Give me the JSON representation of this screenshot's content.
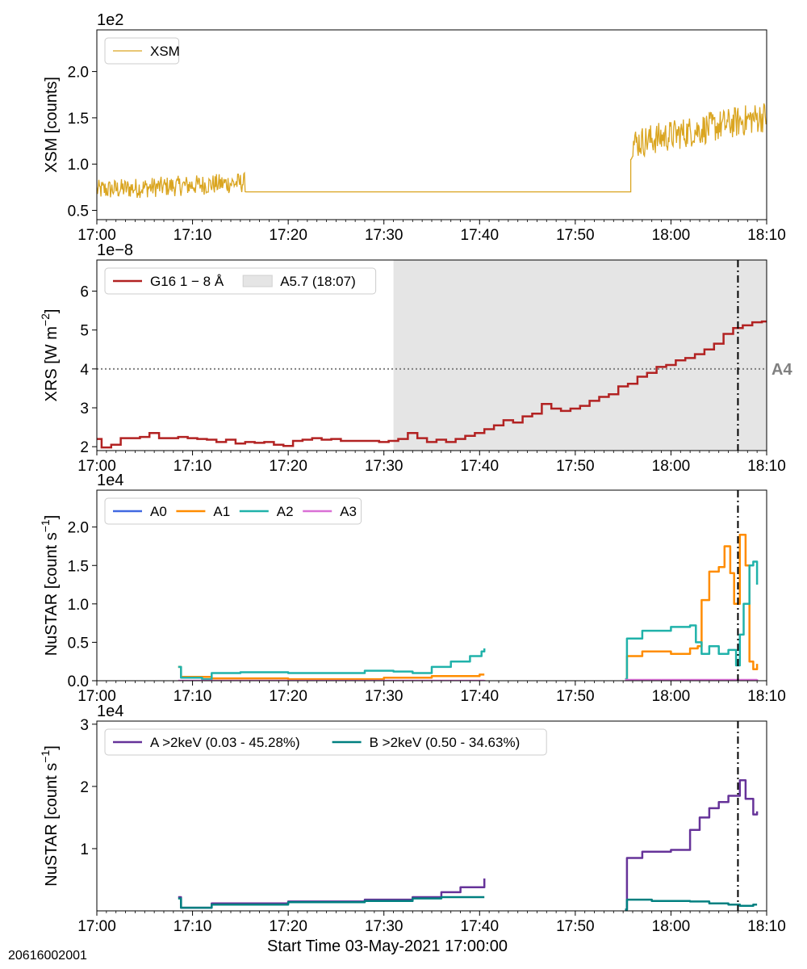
{
  "obs_id": "20616002001",
  "xlabel": "Start Time 03-May-2021 17:00:00",
  "x_ticks": [
    "17:00",
    "17:10",
    "17:20",
    "17:30",
    "17:40",
    "17:50",
    "18:00",
    "18:10"
  ],
  "colors": {
    "xsm": "#DAA520",
    "g16": "#B22222",
    "a0": "#4169E1",
    "a1": "#FF8C00",
    "a2": "#20B2AA",
    "a3": "#DA70D6",
    "a_gt2": "#663399",
    "b_gt2": "#008080",
    "shade": "#E5E5E5",
    "threshold": "#808080"
  },
  "chart_data": [
    {
      "type": "line",
      "panel": "xsm",
      "ylabel": "XSM [counts]",
      "multiplier": "1e2",
      "xlim_min": [
        0,
        70
      ],
      "ylim": [
        0.4,
        2.45
      ],
      "yticks": [
        "0.5",
        "1.0",
        "1.5",
        "2.0"
      ],
      "ytick_values": [
        0.5,
        1.0,
        1.5,
        2.0
      ],
      "legend": "upper-left",
      "series": [
        {
          "name": "XSM",
          "segments": [
            {
              "x0": 0,
              "x1": 15.5,
              "mean": 0.72,
              "mean_end": 0.8,
              "spread": 0.11
            },
            {
              "x0": 15.5,
              "x1": 55.8,
              "mean": 0.7,
              "mean_end": 0.7,
              "spread": 0
            },
            {
              "x0": 55.8,
              "x1": 70,
              "mean": 1.22,
              "mean_end": 1.52,
              "spread": 0.17
            }
          ]
        }
      ]
    },
    {
      "type": "line",
      "panel": "xrs",
      "ylabel": "XRS [W m",
      "ylabel_sup": "−2",
      "ylabel_close": "]",
      "multiplier": "1e−8",
      "xlim_min": [
        0,
        70
      ],
      "ylim": [
        1.9,
        6.8
      ],
      "yticks": [
        "2",
        "3",
        "4",
        "5",
        "6"
      ],
      "ytick_values": [
        2,
        3,
        4,
        5,
        6
      ],
      "legend": "upper-left",
      "shade": {
        "name": "A5.7 (18:07)",
        "x0": 31.0,
        "x1": 70
      },
      "threshold": {
        "y": 4.0,
        "label": "A4"
      },
      "vline_min": 67.0,
      "series": [
        {
          "name": "G16 1 − 8 Å",
          "step_min": 1,
          "values": [
            2.2,
            2.2,
            1.98,
            2.05,
            2.22,
            2.22,
            2.25,
            2.35,
            2.22,
            2.22,
            2.25,
            2.22,
            2.2,
            2.18,
            2.12,
            2.18,
            2.08,
            2.12,
            2.1,
            2.12,
            2.05,
            2.02,
            2.15,
            2.18,
            2.22,
            2.18,
            2.2,
            2.15,
            2.15,
            2.15,
            2.15,
            2.12,
            2.15,
            2.2,
            2.35,
            2.22,
            2.12,
            2.18,
            2.12,
            2.2,
            2.28,
            2.35,
            2.45,
            2.55,
            2.68,
            2.62,
            2.78,
            2.85,
            3.1,
            2.98,
            2.92,
            2.98,
            3.05,
            3.18,
            3.28,
            3.35,
            3.55,
            3.62,
            3.8,
            3.9,
            4.05,
            4.1,
            4.22,
            4.28,
            4.38,
            4.5,
            4.65,
            4.9,
            5.05,
            5.12,
            5.2,
            5.22,
            5.38,
            5.45,
            5.42,
            5.45
          ],
          "x_start": -1.5
        }
      ]
    },
    {
      "type": "line",
      "panel": "nustar-modules",
      "ylabel": "NuSTAR [count s",
      "ylabel_sup": "−1",
      "ylabel_close": "]",
      "multiplier": "1e4",
      "xlim_min": [
        0,
        70
      ],
      "ylim": [
        0.0,
        2.48
      ],
      "yticks": [
        "0.0",
        "0.5",
        "1.0",
        "1.5",
        "2.0"
      ],
      "ytick_values": [
        0.0,
        0.5,
        1.0,
        1.5,
        2.0
      ],
      "legend": "upper-left",
      "vline_min": 67.0,
      "series": [
        {
          "name": "A0",
          "points": []
        },
        {
          "name": "A1",
          "points": [
            [
              8.5,
              0.18
            ],
            [
              8.8,
              0.05
            ],
            [
              12,
              0.03
            ],
            [
              20,
              0.02
            ],
            [
              30,
              0.04
            ],
            [
              35,
              0.06
            ],
            [
              40,
              0.08
            ],
            [
              40.5,
              0.08
            ],
            [
              40.5,
              null
            ],
            [
              55.2,
              0.02
            ],
            [
              55.4,
              0.32
            ],
            [
              57,
              0.38
            ],
            [
              60,
              0.35
            ],
            [
              62,
              0.42
            ],
            [
              62.8,
              0.45
            ],
            [
              63.2,
              1.05
            ],
            [
              64,
              1.42
            ],
            [
              65,
              1.48
            ],
            [
              65.6,
              1.75
            ],
            [
              66.2,
              1.4
            ],
            [
              66.6,
              1.0
            ],
            [
              67.2,
              1.9
            ],
            [
              67.8,
              1.5
            ],
            [
              68.2,
              0.25
            ],
            [
              68.6,
              0.15
            ],
            [
              69.0,
              0.22
            ]
          ]
        },
        {
          "name": "A2",
          "points": [
            [
              8.5,
              0.18
            ],
            [
              8.8,
              0.04
            ],
            [
              11,
              0.02
            ],
            [
              12,
              0.1
            ],
            [
              15,
              0.11
            ],
            [
              20,
              0.1
            ],
            [
              28,
              0.13
            ],
            [
              31,
              0.12
            ],
            [
              33,
              0.1
            ],
            [
              35,
              0.18
            ],
            [
              37,
              0.25
            ],
            [
              39,
              0.32
            ],
            [
              40.2,
              0.38
            ],
            [
              40.5,
              0.42
            ],
            [
              40.5,
              null
            ],
            [
              55.2,
              0.02
            ],
            [
              55.4,
              0.55
            ],
            [
              57,
              0.65
            ],
            [
              60,
              0.7
            ],
            [
              62,
              0.72
            ],
            [
              62.6,
              0.5
            ],
            [
              63.2,
              0.35
            ],
            [
              64,
              0.45
            ],
            [
              65,
              0.35
            ],
            [
              66,
              0.4
            ],
            [
              66.8,
              0.2
            ],
            [
              67.2,
              0.6
            ],
            [
              67.6,
              1.0
            ],
            [
              68.2,
              1.5
            ],
            [
              68.6,
              1.55
            ],
            [
              69.0,
              1.25
            ]
          ]
        },
        {
          "name": "A3",
          "points": [
            [
              8.5,
              0.0
            ],
            [
              40.5,
              0.01
            ],
            [
              40.5,
              null
            ],
            [
              55.2,
              0.01
            ],
            [
              69.0,
              0.02
            ]
          ]
        }
      ]
    },
    {
      "type": "line",
      "panel": "nustar-ab",
      "ylabel": "NuSTAR [count s",
      "ylabel_sup": "−1",
      "ylabel_close": "]",
      "multiplier": "1e4",
      "xlim_min": [
        0,
        70
      ],
      "ylim": [
        0.0,
        3.05
      ],
      "yticks": [
        "1",
        "2",
        "3"
      ],
      "ytick_values": [
        1,
        2,
        3
      ],
      "legend": "upper-left",
      "vline_min": 67.0,
      "series": [
        {
          "name": "A >2keV (0.03 - 45.28%)",
          "points": [
            [
              8.5,
              0.22
            ],
            [
              8.8,
              0.05
            ],
            [
              12,
              0.12
            ],
            [
              20,
              0.15
            ],
            [
              28,
              0.18
            ],
            [
              33,
              0.22
            ],
            [
              36,
              0.3
            ],
            [
              38,
              0.38
            ],
            [
              40.5,
              0.52
            ],
            [
              40.5,
              null
            ],
            [
              55.2,
              0.02
            ],
            [
              55.4,
              0.85
            ],
            [
              57,
              0.95
            ],
            [
              60,
              0.98
            ],
            [
              62,
              1.3
            ],
            [
              63,
              1.5
            ],
            [
              64,
              1.65
            ],
            [
              65,
              1.75
            ],
            [
              66,
              1.85
            ],
            [
              67.2,
              2.1
            ],
            [
              67.8,
              1.8
            ],
            [
              68.6,
              1.55
            ],
            [
              69.0,
              1.6
            ]
          ]
        },
        {
          "name": "B >2keV (0.50 - 34.63%)",
          "points": [
            [
              8.5,
              0.2
            ],
            [
              8.8,
              0.05
            ],
            [
              12,
              0.1
            ],
            [
              20,
              0.14
            ],
            [
              28,
              0.16
            ],
            [
              33,
              0.2
            ],
            [
              36,
              0.22
            ],
            [
              40.5,
              0.22
            ],
            [
              40.5,
              null
            ],
            [
              55.2,
              0.02
            ],
            [
              55.4,
              0.18
            ],
            [
              58,
              0.16
            ],
            [
              62,
              0.15
            ],
            [
              64,
              0.12
            ],
            [
              66,
              0.1
            ],
            [
              67.2,
              0.08
            ],
            [
              68.6,
              0.1
            ],
            [
              69.0,
              0.1
            ]
          ]
        }
      ]
    }
  ]
}
